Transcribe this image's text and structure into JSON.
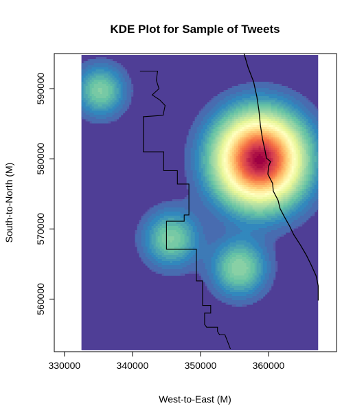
{
  "chart_data": {
    "type": "heatmap",
    "title": "KDE Plot for Sample of Tweets",
    "xlabel": "West-to-East (M)",
    "ylabel": "South-to-North (M)",
    "xlim": [
      328500,
      370000
    ],
    "ylim": [
      552500,
      595000
    ],
    "x_ticks": [
      330000,
      340000,
      350000,
      360000
    ],
    "y_ticks": [
      560000,
      570000,
      580000,
      590000
    ],
    "x_tick_labels": [
      "330000",
      "340000",
      "350000",
      "360000"
    ],
    "y_tick_labels": [
      "560000",
      "570000",
      "580000",
      "590000"
    ],
    "raster_extent": {
      "x": [
        332500,
        367300
      ],
      "y": [
        552700,
        594800
      ]
    },
    "colormap": [
      "#5e4fa2",
      "#3288bd",
      "#66c2a5",
      "#abdda4",
      "#e6f598",
      "#ffffbf",
      "#fee08b",
      "#fdae61",
      "#f46d43",
      "#d53e4f",
      "#9e0142"
    ],
    "background_color": "#4f3e96",
    "hotspots": [
      {
        "x": 358700,
        "y": 579900,
        "intensity": 1.0,
        "sigma": 4300
      },
      {
        "x": 335300,
        "y": 589700,
        "intensity": 0.24,
        "sigma": 2400
      },
      {
        "x": 345700,
        "y": 568600,
        "intensity": 0.24,
        "sigma": 2700
      },
      {
        "x": 355700,
        "y": 564400,
        "intensity": 0.26,
        "sigma": 2700
      }
    ],
    "boundary_polygon": [
      [
        341100,
        592500
      ],
      [
        343700,
        592500
      ],
      [
        343500,
        591200
      ],
      [
        343900,
        590000
      ],
      [
        342900,
        589100
      ],
      [
        344000,
        588400
      ],
      [
        344800,
        587600
      ],
      [
        344500,
        586200
      ],
      [
        341600,
        586000
      ],
      [
        341600,
        581000
      ],
      [
        344600,
        581000
      ],
      [
        344600,
        578300
      ],
      [
        346600,
        578300
      ],
      [
        346600,
        576400
      ],
      [
        348300,
        576400
      ],
      [
        348300,
        572000
      ],
      [
        347600,
        572000
      ],
      [
        347600,
        571100
      ],
      [
        345000,
        571100
      ],
      [
        345000,
        567100
      ],
      [
        349400,
        567100
      ],
      [
        349400,
        562600
      ],
      [
        350300,
        562600
      ],
      [
        350300,
        559100
      ],
      [
        351500,
        559100
      ],
      [
        351500,
        558000
      ],
      [
        350600,
        558000
      ],
      [
        350600,
        556400
      ],
      [
        350900,
        556000
      ],
      [
        352500,
        556000
      ],
      [
        352500,
        555400
      ],
      [
        352800,
        554900
      ],
      [
        353600,
        554900
      ],
      [
        354400,
        552900
      ]
    ],
    "lakeshore_polyline": [
      [
        356400,
        595000
      ],
      [
        357000,
        593000
      ],
      [
        357800,
        591000
      ],
      [
        358300,
        588800
      ],
      [
        358600,
        586800
      ],
      [
        358800,
        584800
      ],
      [
        359100,
        582900
      ],
      [
        359500,
        581100
      ],
      [
        359700,
        580100
      ],
      [
        360300,
        579600
      ],
      [
        360000,
        578900
      ],
      [
        359900,
        577800
      ],
      [
        360600,
        576500
      ],
      [
        360700,
        575400
      ],
      [
        361400,
        574100
      ],
      [
        361700,
        572900
      ],
      [
        362300,
        571800
      ],
      [
        363100,
        570400
      ],
      [
        363700,
        569200
      ],
      [
        364700,
        567700
      ],
      [
        365600,
        566200
      ],
      [
        366300,
        564800
      ],
      [
        367000,
        563300
      ],
      [
        367300,
        561900
      ],
      [
        367300,
        559800
      ]
    ]
  }
}
